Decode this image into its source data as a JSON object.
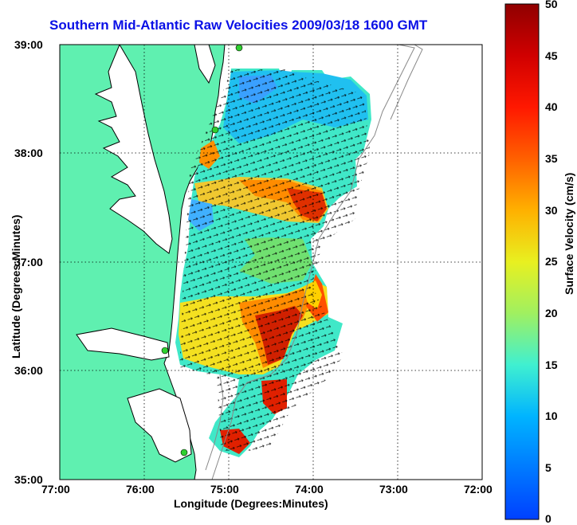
{
  "title": "Southern Mid-Atlantic Raw Velocities 2009/03/18 1600 GMT",
  "xlabel": "Longitude (Degrees:Minutes)",
  "ylabel": "Latitude (Degrees:Minutes)",
  "colorbar": {
    "label": "Surface Velocity (cm/s)",
    "ticks": [
      "50",
      "45",
      "40",
      "35",
      "30",
      "25",
      "20",
      "15",
      "10",
      "5",
      "0"
    ],
    "min": 0,
    "max": 50
  },
  "x_ticks": [
    "77:00",
    "76:00",
    "75:00",
    "74:00",
    "73:00",
    "72:00"
  ],
  "y_ticks": [
    "39:00",
    "38:00",
    "37:00",
    "36:00",
    "35:00"
  ],
  "map": {
    "lon_range": [
      -77,
      -72
    ],
    "lat_range": [
      35,
      39
    ],
    "land_color": "#5ff0b0",
    "coast_color": "#000000",
    "grid_style": "dotted",
    "stations": [
      "station-1",
      "station-2",
      "station-3",
      "station-4"
    ]
  }
}
